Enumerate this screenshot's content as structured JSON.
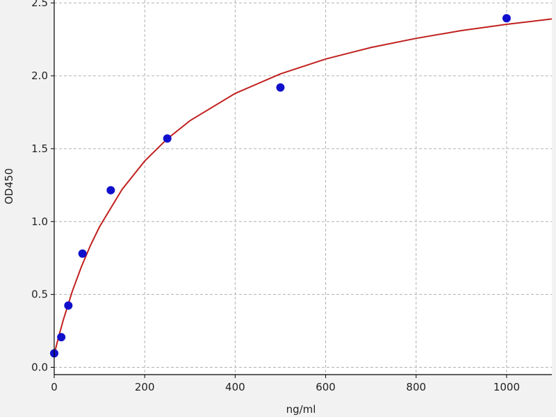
{
  "chart_data": {
    "type": "scatter",
    "title": "",
    "xlabel": "ng/ml",
    "ylabel": "OD450",
    "xlim": [
      0,
      1100
    ],
    "ylim": [
      -0.05,
      2.52
    ],
    "xticks": [
      0,
      200,
      400,
      600,
      800,
      1000
    ],
    "xtick_labels": [
      "0",
      "200",
      "400",
      "600",
      "800",
      "1000"
    ],
    "yticks": [
      0.0,
      0.5,
      1.0,
      1.5,
      2.0,
      2.5
    ],
    "ytick_labels": [
      "0.0",
      "0.5",
      "1.0",
      "1.5",
      "2.0",
      "2.5"
    ],
    "grid": true,
    "points": {
      "color": "#1010cc",
      "x": [
        0,
        15.6,
        31.25,
        62.5,
        125,
        250,
        500,
        1000
      ],
      "y": [
        0.096,
        0.207,
        0.424,
        0.78,
        1.215,
        1.57,
        1.92,
        2.395
      ]
    },
    "fit_curve": {
      "color": "#c0201e",
      "x": [
        0,
        10,
        20,
        40,
        60,
        80,
        100,
        150,
        200,
        250,
        300,
        400,
        500,
        600,
        700,
        800,
        900,
        1000,
        1100
      ],
      "y": [
        0.09,
        0.212,
        0.324,
        0.521,
        0.69,
        0.836,
        0.963,
        1.22,
        1.415,
        1.568,
        1.692,
        1.879,
        2.013,
        2.115,
        2.194,
        2.257,
        2.31,
        2.353,
        2.39
      ]
    }
  }
}
